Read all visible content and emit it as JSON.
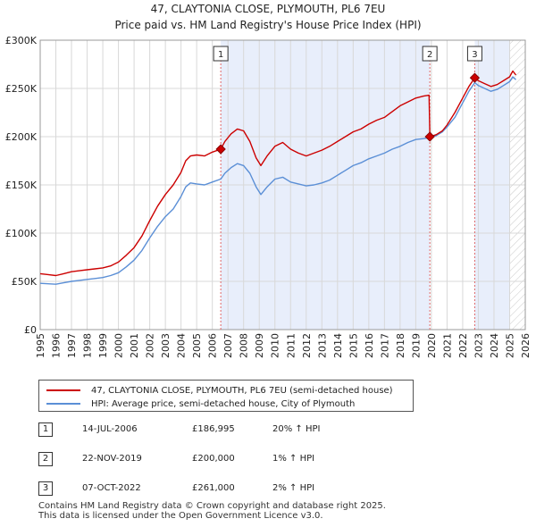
{
  "chart_data": {
    "type": "line",
    "title": "47, CLAYTONIA CLOSE, PLYMOUTH, PL6 7EU",
    "subtitle": "Price paid vs. HM Land Registry's House Price Index (HPI)",
    "ylim": [
      0,
      300000
    ],
    "xlim": [
      1995,
      2026
    ],
    "yticks": [
      {
        "value": 0,
        "label": "£0"
      },
      {
        "value": 50000,
        "label": "£50K"
      },
      {
        "value": 100000,
        "label": "£100K"
      },
      {
        "value": 150000,
        "label": "£150K"
      },
      {
        "value": 200000,
        "label": "£200K"
      },
      {
        "value": 250000,
        "label": "£250K"
      },
      {
        "value": 300000,
        "label": "£300K"
      }
    ],
    "xticks": [
      "1995",
      "1996",
      "1997",
      "1998",
      "1999",
      "2000",
      "2001",
      "2002",
      "2003",
      "2004",
      "2005",
      "2006",
      "2007",
      "2008",
      "2009",
      "2010",
      "2011",
      "2012",
      "2013",
      "2014",
      "2015",
      "2016",
      "2017",
      "2018",
      "2019",
      "2020",
      "2021",
      "2022",
      "2023",
      "2024",
      "2025",
      "2026"
    ],
    "shaded_ranges": [
      [
        2006.54,
        2019.9
      ],
      [
        2022.77,
        2025.0
      ]
    ],
    "forecast_start": 2025.0,
    "series": [
      {
        "name": "47, CLAYTONIA CLOSE, PLYMOUTH, PL6 7EU (semi-detached house)",
        "color": "#cc0000",
        "x": [
          1995.0,
          1995.5,
          1996.0,
          1996.5,
          1997.0,
          1997.5,
          1998.0,
          1998.5,
          1999.0,
          1999.5,
          2000.0,
          2000.5,
          2001.0,
          2001.5,
          2002.0,
          2002.5,
          2003.0,
          2003.5,
          2004.0,
          2004.3,
          2004.6,
          2005.0,
          2005.5,
          2006.0,
          2006.54,
          2006.8,
          2007.2,
          2007.6,
          2008.0,
          2008.4,
          2008.8,
          2009.1,
          2009.5,
          2010.0,
          2010.5,
          2011.0,
          2011.5,
          2012.0,
          2012.5,
          2013.0,
          2013.5,
          2014.0,
          2014.5,
          2015.0,
          2015.5,
          2016.0,
          2016.5,
          2017.0,
          2017.5,
          2018.0,
          2018.5,
          2019.0,
          2019.5,
          2019.85,
          2019.9,
          2020.3,
          2020.7,
          2021.0,
          2021.5,
          2022.0,
          2022.4,
          2022.77,
          2023.0,
          2023.4,
          2023.8,
          2024.2,
          2024.6,
          2025.0,
          2025.2,
          2025.4
        ],
        "y": [
          58000,
          57000,
          56000,
          58000,
          60000,
          61000,
          62000,
          63000,
          64000,
          66000,
          70000,
          77000,
          85000,
          97000,
          113000,
          128000,
          140000,
          150000,
          163000,
          175000,
          180000,
          181000,
          180000,
          184000,
          186995,
          195000,
          203000,
          208000,
          206000,
          195000,
          178000,
          170000,
          180000,
          190000,
          194000,
          187000,
          183000,
          180000,
          183000,
          186000,
          190000,
          195000,
          200000,
          205000,
          208000,
          213000,
          217000,
          220000,
          226000,
          232000,
          236000,
          240000,
          242000,
          243000,
          200000,
          202000,
          206000,
          212000,
          225000,
          240000,
          252000,
          261000,
          258000,
          255000,
          252000,
          254000,
          258000,
          262000,
          268000,
          264000
        ]
      },
      {
        "name": "HPI: Average price, semi-detached house, City of Plymouth",
        "color": "#5b8fd6",
        "x": [
          1995.0,
          1995.5,
          1996.0,
          1996.5,
          1997.0,
          1997.5,
          1998.0,
          1998.5,
          1999.0,
          1999.5,
          2000.0,
          2000.5,
          2001.0,
          2001.5,
          2002.0,
          2002.5,
          2003.0,
          2003.5,
          2004.0,
          2004.3,
          2004.6,
          2005.0,
          2005.5,
          2006.0,
          2006.54,
          2006.8,
          2007.2,
          2007.6,
          2008.0,
          2008.4,
          2008.8,
          2009.1,
          2009.5,
          2010.0,
          2010.5,
          2011.0,
          2011.5,
          2012.0,
          2012.5,
          2013.0,
          2013.5,
          2014.0,
          2014.5,
          2015.0,
          2015.5,
          2016.0,
          2016.5,
          2017.0,
          2017.5,
          2018.0,
          2018.5,
          2019.0,
          2019.5,
          2019.9,
          2020.3,
          2020.7,
          2021.0,
          2021.5,
          2022.0,
          2022.4,
          2022.77,
          2023.0,
          2023.4,
          2023.8,
          2024.2,
          2024.6,
          2025.0,
          2025.2,
          2025.4
        ],
        "y": [
          48000,
          47500,
          47000,
          48500,
          50000,
          51000,
          52000,
          53000,
          54000,
          56000,
          59000,
          65000,
          72000,
          82000,
          95000,
          107000,
          117000,
          125000,
          138000,
          148000,
          152000,
          151000,
          150000,
          153000,
          156000,
          162000,
          168000,
          172000,
          170000,
          162000,
          148000,
          140000,
          148000,
          156000,
          158000,
          153000,
          151000,
          149000,
          150000,
          152000,
          155000,
          160000,
          165000,
          170000,
          173000,
          177000,
          180000,
          183000,
          187000,
          190000,
          194000,
          197000,
          198000,
          199000,
          201000,
          205000,
          210000,
          220000,
          235000,
          247000,
          256000,
          253000,
          250000,
          247000,
          249000,
          253000,
          257000,
          262000,
          259000
        ]
      }
    ],
    "sales": [
      {
        "label": "1",
        "x": 2006.54,
        "y": 186995
      },
      {
        "label": "2",
        "x": 2019.9,
        "y": 200000
      },
      {
        "label": "3",
        "x": 2022.77,
        "y": 261000
      }
    ]
  },
  "legend": {
    "property": "47, CLAYTONIA CLOSE, PLYMOUTH, PL6 7EU (semi-detached house)",
    "hpi": "HPI: Average price, semi-detached house, City of Plymouth"
  },
  "sales_table": [
    {
      "num": "1",
      "date": "14-JUL-2006",
      "price": "£186,995",
      "hpi": "20% ↑ HPI"
    },
    {
      "num": "2",
      "date": "22-NOV-2019",
      "price": "£200,000",
      "hpi": "1% ↑ HPI"
    },
    {
      "num": "3",
      "date": "07-OCT-2022",
      "price": "£261,000",
      "hpi": "2% ↑ HPI"
    }
  ],
  "footer": {
    "line1": "Contains HM Land Registry data © Crown copyright and database right 2025.",
    "line2": "This data is licensed under the Open Government Licence v3.0."
  },
  "colors": {
    "property": "#cc0000",
    "hpi": "#5b8fd6",
    "shade": "#e8eefb",
    "grid": "#d8d8d8"
  }
}
